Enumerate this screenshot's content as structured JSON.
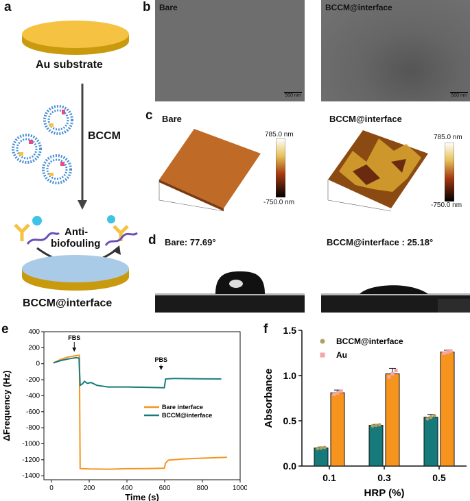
{
  "panels": {
    "a": "a",
    "b": "b",
    "c": "c",
    "d": "d",
    "e": "e",
    "f": "f"
  },
  "panel_a": {
    "substrate": "Au substrate",
    "process": "BCCM",
    "antifouling_line1": "Anti-",
    "antifouling_line2": "biofouling",
    "result": "BCCM@interface"
  },
  "panel_b": {
    "left_label": "Bare",
    "right_label": "BCCM@interface",
    "scale_bar": "500 nm"
  },
  "panel_c": {
    "left_label": "Bare",
    "right_label": "BCCM@interface",
    "scale_max": "785.0 nm",
    "scale_min": "-750.0 nm"
  },
  "panel_d": {
    "left_label": "Bare: 77.69°",
    "right_label": "BCCM@interface : 25.18°"
  },
  "colors": {
    "orange": "#f7941d",
    "teal": "#177a7a",
    "gold": "#f5c242",
    "pink": "#f4a6a8",
    "olive": "#b0a060"
  },
  "chart_data": [
    {
      "type": "line",
      "xlabel": "Time (s)",
      "ylabel": "ΔFrequency (Hz)",
      "xlim": [
        -40,
        1000
      ],
      "ylim": [
        -1450,
        400
      ],
      "xticks": [
        0,
        200,
        400,
        600,
        800,
        1000
      ],
      "yticks": [
        400,
        200,
        0,
        -200,
        -400,
        -600,
        -800,
        -1000,
        -1200,
        -1400
      ],
      "annotations": [
        {
          "text": "FBS",
          "x": 150
        },
        {
          "text": "PBS",
          "x": 610
        }
      ],
      "series": [
        {
          "name": "Bare interface",
          "color": "#f7941d",
          "points": [
            [
              10,
              10
            ],
            [
              50,
              55
            ],
            [
              90,
              85
            ],
            [
              130,
              100
            ],
            [
              148,
              105
            ],
            [
              152,
              -1310
            ],
            [
              200,
              -1315
            ],
            [
              300,
              -1318
            ],
            [
              400,
              -1312
            ],
            [
              500,
              -1310
            ],
            [
              598,
              -1305
            ],
            [
              605,
              -1240
            ],
            [
              620,
              -1205
            ],
            [
              700,
              -1190
            ],
            [
              800,
              -1180
            ],
            [
              930,
              -1170
            ]
          ]
        },
        {
          "name": "BCCM@interface",
          "color": "#177a7a",
          "points": [
            [
              10,
              10
            ],
            [
              50,
              40
            ],
            [
              90,
              60
            ],
            [
              130,
              75
            ],
            [
              146,
              70
            ],
            [
              152,
              -270
            ],
            [
              165,
              -250
            ],
            [
              175,
              -220
            ],
            [
              190,
              -245
            ],
            [
              210,
              -235
            ],
            [
              240,
              -270
            ],
            [
              300,
              -290
            ],
            [
              400,
              -290
            ],
            [
              500,
              -295
            ],
            [
              598,
              -300
            ],
            [
              605,
              -190
            ],
            [
              650,
              -185
            ],
            [
              800,
              -188
            ],
            [
              900,
              -190
            ]
          ]
        }
      ]
    },
    {
      "type": "bar",
      "xlabel": "HRP (%)",
      "ylabel": "Absorbance",
      "categories": [
        "0.1",
        "0.3",
        "0.5"
      ],
      "ylim": [
        0,
        1.5
      ],
      "yticks": [
        "0.0",
        "0.5",
        "1.0",
        "1.5"
      ],
      "series": [
        {
          "name": "BCCM@interface",
          "color": "#177a7a",
          "values": [
            0.2,
            0.45,
            0.54
          ],
          "errors": [
            0.01,
            0.01,
            0.03
          ]
        },
        {
          "name": "Au",
          "color": "#f7941d",
          "values": [
            0.81,
            1.02,
            1.26
          ],
          "errors": [
            0.03,
            0.06,
            0.02
          ]
        }
      ]
    }
  ]
}
